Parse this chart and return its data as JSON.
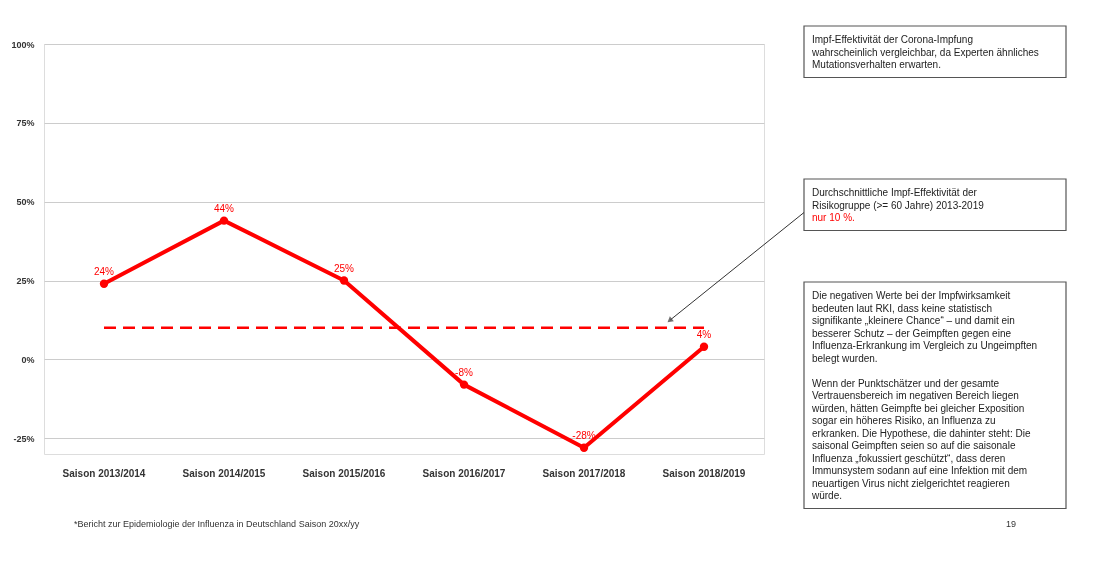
{
  "chart_data": {
    "type": "line",
    "categories": [
      "Saison 2013/2014",
      "Saison 2014/2015",
      "Saison 2015/2016",
      "Saison 2016/2017",
      "Saison 2017/2018",
      "Saison 2018/2019"
    ],
    "series": [
      {
        "color": "#ff0000",
        "values": [
          24,
          44,
          25,
          -8,
          -28,
          4
        ],
        "value_labels": [
          "24%",
          "44%",
          "25%",
          "-8%",
          "-28%",
          "4%"
        ]
      }
    ],
    "ylim": [
      -30,
      100
    ],
    "yticks": [
      {
        "value": -25,
        "label": "-25%"
      },
      {
        "value": 0,
        "label": "0%"
      },
      {
        "value": 25,
        "label": "25%"
      },
      {
        "value": 50,
        "label": "50%"
      },
      {
        "value": 75,
        "label": "75%"
      },
      {
        "value": 100,
        "label": "100%"
      }
    ],
    "grid": "y",
    "marker": "circle",
    "line_style": "solid",
    "ref_lines": [
      {
        "axis": "y",
        "value": 10,
        "label": "nur 10 %.",
        "color": "#ff0000",
        "line_style": "dashed"
      }
    ],
    "annotations": [
      "Impf-Effektivität der Corona-Impfung wahrscheinlich vergleichbar, da Experten ähnliches Mutationsverhalten erwarten.",
      "Durchschnittliche Impf-Effektivität der Risikogruppe (>= 60 Jahre) 2013-2019",
      "Die negativen Werte bei der Impfwirksamkeit bedeuten laut RKI, dass keine statistisch signifikante „kleinere Chance“ – und damit ein besserer Schutz – der Geimpften gegen eine Influenza-Erkrankung im Vergleich zu Ungeimpften belegt wurden.",
      "Wenn der Punktschätzer und der gesamte Vertrauensbereich im negativen Bereich liegen würden, hätten Geimpfte bei gleicher Exposition sogar ein höheres Risiko, an Influenza zu erkranken. Die Hypothese, die dahinter steht: Die saisonal Geimpften seien so auf die saisonale Influenza „fokussiert geschützt“, dass deren Immunsystem sodann auf eine Infektion mit dem neuartigen Virus nicht zielgerichtet reagieren würde.",
      "*Bericht zur Epidemiologie der Influenza in Deutschland Saison 20xx/yy",
      "19"
    ]
  }
}
